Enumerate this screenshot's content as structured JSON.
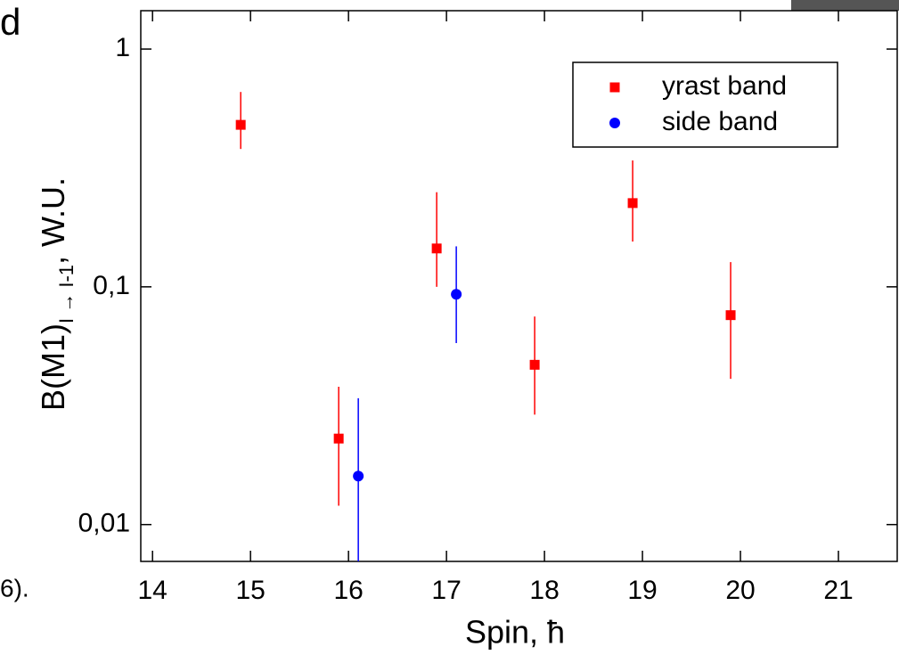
{
  "fragments": [
    "d",
    "6)."
  ],
  "chart_data": {
    "type": "scatter",
    "xlabel": "Spin, ħ",
    "ylabel": {
      "main": "B(M1)",
      "subscript": "I → I-1",
      "suffix": ", W.U."
    },
    "xlim": [
      13.88,
      21.6
    ],
    "xticks": [
      14,
      15,
      16,
      17,
      18,
      19,
      20,
      21
    ],
    "ylim": [
      0.007,
      1.45
    ],
    "yscale": "log",
    "yticks": [
      1,
      {
        "value": 0.1,
        "label": "0,1"
      },
      {
        "value": 0.01,
        "label": "0,01"
      }
    ],
    "legend": "upper right",
    "series": [
      {
        "name": "yrast band",
        "color": "#ff0000",
        "marker": "square",
        "x": [
          14.9,
          15.9,
          16.9,
          17.9,
          18.9,
          19.9
        ],
        "values": [
          0.48,
          0.023,
          0.145,
          0.047,
          0.225,
          0.076
        ],
        "yerr_minus": [
          0.1,
          0.011,
          0.045,
          0.018,
          0.07,
          0.035
        ],
        "yerr_plus": [
          0.18,
          0.015,
          0.105,
          0.028,
          0.115,
          0.051
        ]
      },
      {
        "name": "side band",
        "color": "#0000ff",
        "marker": "circle",
        "x": [
          16.1,
          17.1
        ],
        "values": [
          0.016,
          0.093
        ],
        "yerr_minus": [
          0.009,
          0.035
        ],
        "yerr_plus": [
          0.018,
          0.055
        ]
      }
    ]
  }
}
